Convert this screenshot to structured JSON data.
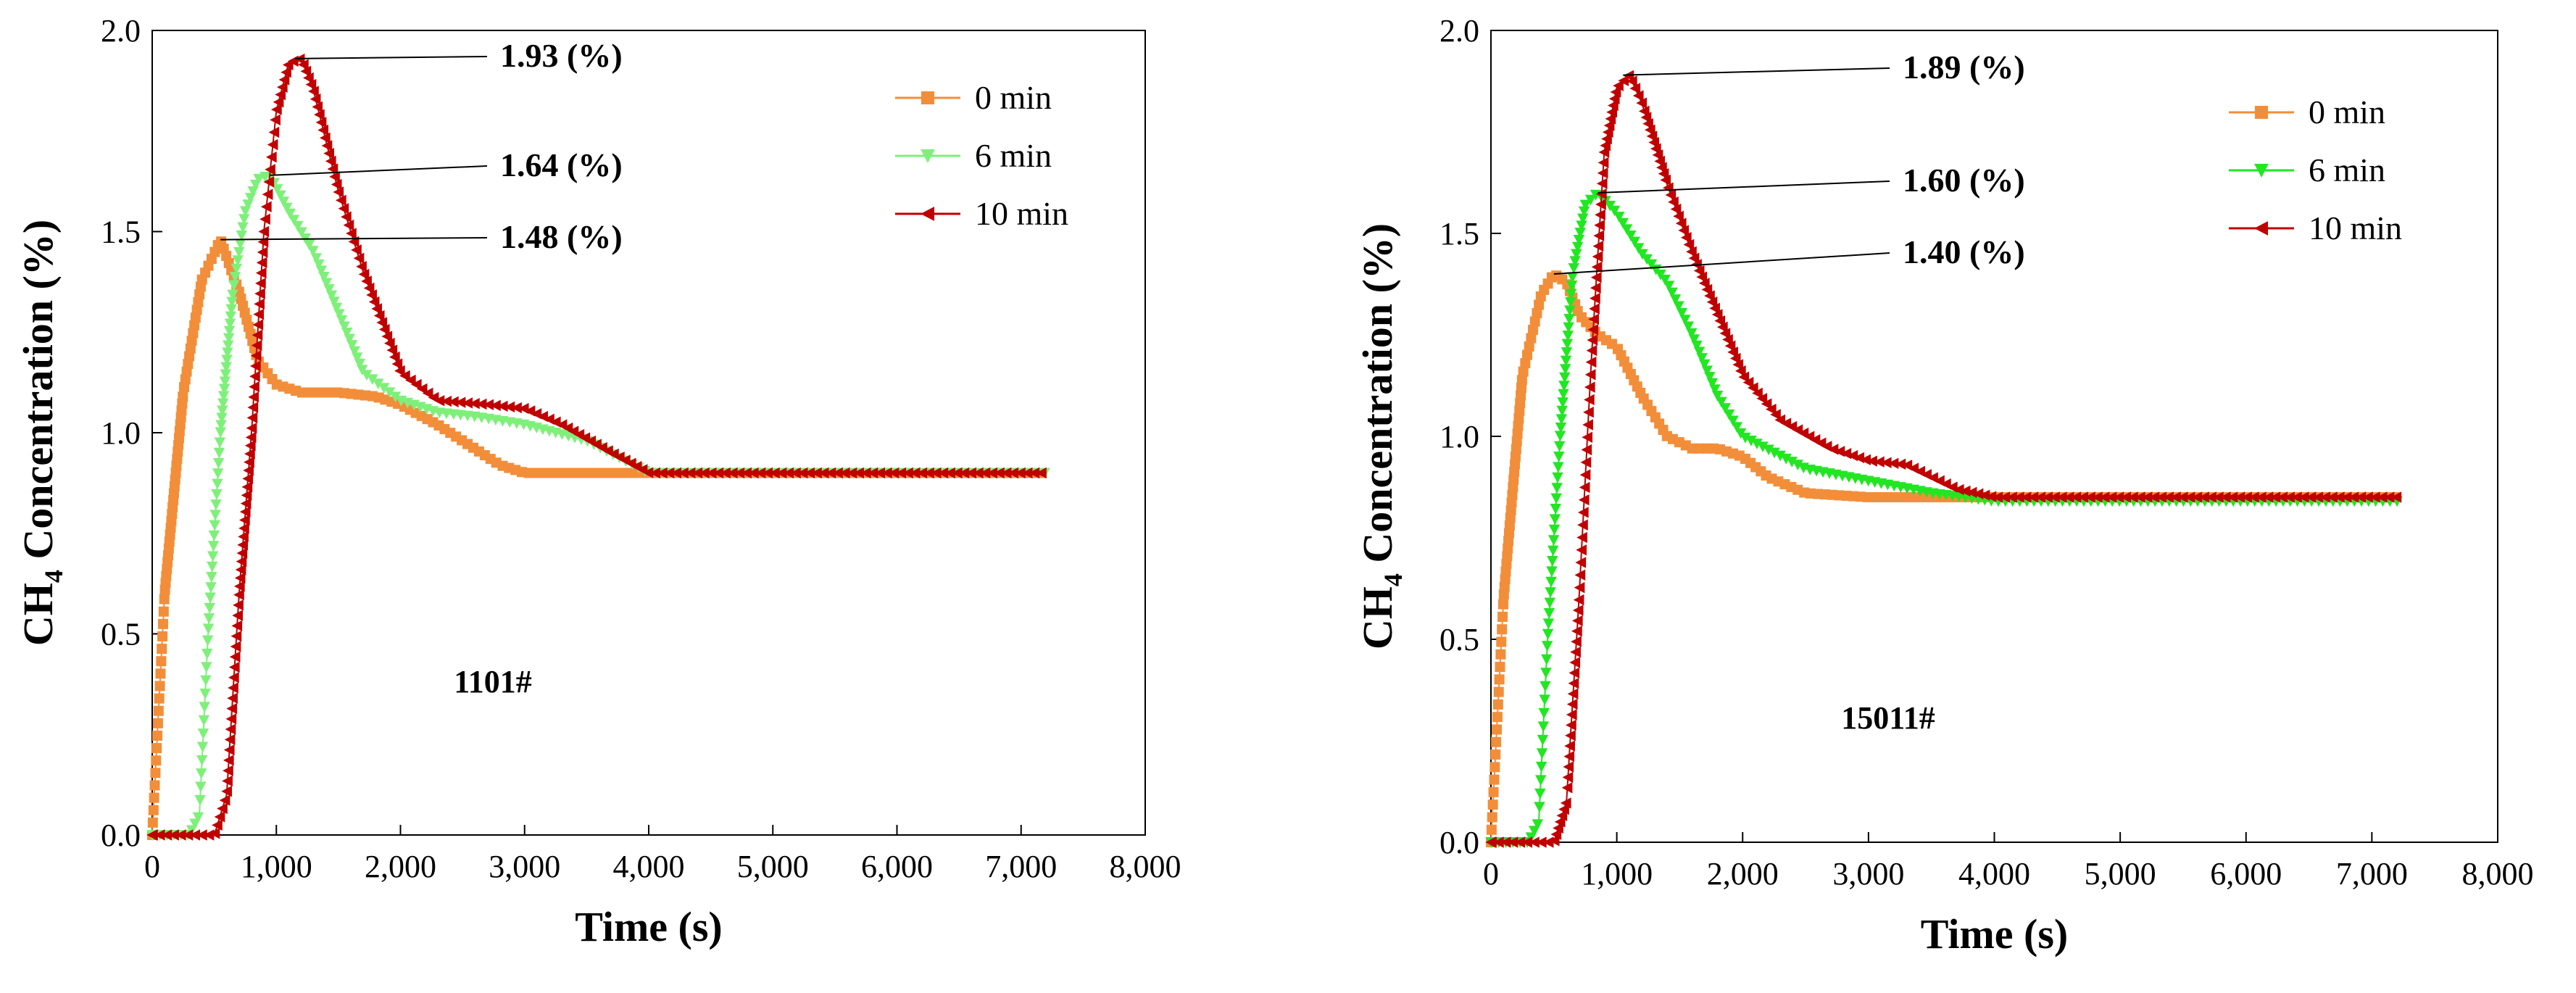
{
  "chart_data": [
    {
      "type": "scatter",
      "panel_label": "1101#",
      "xlabel": "Time (s)",
      "ylabel": "CH4 Concentration (%)",
      "ylabel_main": "CH",
      "ylabel_sub": "4",
      "ylabel_rest": " Concentration (%)",
      "xlim": [
        0,
        8000
      ],
      "ylim": [
        0,
        2.0
      ],
      "xticks": [
        0,
        1000,
        2000,
        3000,
        4000,
        5000,
        6000,
        7000,
        8000
      ],
      "xtick_labels": [
        "0",
        "1,000",
        "2,000",
        "3,000",
        "4,000",
        "5,000",
        "6,000",
        "7,000",
        "8,000"
      ],
      "yticks": [
        0,
        0.5,
        1.0,
        1.5,
        2.0
      ],
      "ytick_labels": [
        "0.0",
        "0.5",
        "1.0",
        "1.5",
        "2.0"
      ],
      "grid": false,
      "legend_position": "top-right",
      "series": [
        {
          "name": "0 min",
          "color": "#f28e3a",
          "marker": "square",
          "x": [
            0,
            100,
            250,
            400,
            550,
            700,
            850,
            1000,
            1200,
            1500,
            1800,
            2000,
            2300,
            2600,
            2800,
            3000,
            3500,
            4000,
            5000,
            6000,
            7200
          ],
          "y": [
            0.0,
            0.6,
            1.1,
            1.38,
            1.48,
            1.35,
            1.18,
            1.12,
            1.1,
            1.1,
            1.09,
            1.07,
            1.02,
            0.96,
            0.92,
            0.9,
            0.9,
            0.9,
            0.9,
            0.9,
            0.9
          ]
        },
        {
          "name": "6 min",
          "color": "#7ef07a",
          "marker": "triangle-down",
          "x": [
            0,
            300,
            380,
            450,
            550,
            650,
            750,
            850,
            950,
            1100,
            1300,
            1500,
            1700,
            2000,
            2300,
            2600,
            3000,
            3500,
            4000,
            4500,
            5000,
            6000,
            7200
          ],
          "y": [
            0.0,
            0.0,
            0.05,
            0.5,
            1.0,
            1.35,
            1.55,
            1.63,
            1.64,
            1.55,
            1.45,
            1.3,
            1.15,
            1.08,
            1.05,
            1.04,
            1.02,
            0.98,
            0.9,
            0.9,
            0.9,
            0.9,
            0.9
          ]
        },
        {
          "name": "10 min",
          "color": "#c00000",
          "marker": "triangle-left",
          "x": [
            0,
            500,
            600,
            700,
            800,
            900,
            1000,
            1100,
            1200,
            1300,
            1500,
            1700,
            2000,
            2300,
            2700,
            3000,
            3300,
            3700,
            4000,
            4500,
            5000,
            6000,
            7200
          ],
          "y": [
            0.0,
            0.0,
            0.1,
            0.6,
            1.0,
            1.5,
            1.8,
            1.92,
            1.93,
            1.85,
            1.6,
            1.4,
            1.15,
            1.08,
            1.07,
            1.06,
            1.02,
            0.95,
            0.9,
            0.9,
            0.9,
            0.9,
            0.9
          ]
        }
      ],
      "annotations": [
        {
          "text": "1.93 (%)",
          "series": "10 min",
          "x": 1150,
          "y": 1.93
        },
        {
          "text": "1.64 (%)",
          "series": "6 min",
          "x": 950,
          "y": 1.64
        },
        {
          "text": "1.48 (%)",
          "series": "0 min",
          "x": 550,
          "y": 1.48
        }
      ]
    },
    {
      "type": "scatter",
      "panel_label": "15011#",
      "xlabel": "Time (s)",
      "ylabel": "CH4 Concentration (%)",
      "ylabel_main": "CH",
      "ylabel_sub": "4",
      "ylabel_rest": " Concentration (%)",
      "xlim": [
        0,
        8000
      ],
      "ylim": [
        0,
        2.0
      ],
      "xticks": [
        0,
        1000,
        2000,
        3000,
        4000,
        5000,
        6000,
        7000,
        8000
      ],
      "xtick_labels": [
        "0",
        "1,000",
        "2,000",
        "3,000",
        "4,000",
        "5,000",
        "6,000",
        "7,000",
        "8,000"
      ],
      "yticks": [
        0,
        0.5,
        1.0,
        1.5,
        2.0
      ],
      "ytick_labels": [
        "0.0",
        "0.5",
        "1.0",
        "1.5",
        "2.0"
      ],
      "grid": false,
      "legend_position": "top-right",
      "series": [
        {
          "name": "0 min",
          "color": "#f28e3a",
          "marker": "square",
          "x": [
            0,
            100,
            250,
            400,
            500,
            600,
            700,
            850,
            1000,
            1200,
            1400,
            1600,
            1800,
            2000,
            2200,
            2500,
            3000,
            4000,
            5000,
            6000,
            7200
          ],
          "y": [
            0.0,
            0.6,
            1.15,
            1.35,
            1.4,
            1.38,
            1.3,
            1.25,
            1.22,
            1.1,
            1.0,
            0.97,
            0.97,
            0.95,
            0.9,
            0.86,
            0.85,
            0.85,
            0.85,
            0.85,
            0.85
          ]
        },
        {
          "name": "6 min",
          "color": "#22e622",
          "marker": "triangle-down",
          "x": [
            0,
            300,
            380,
            450,
            550,
            650,
            750,
            850,
            1000,
            1200,
            1400,
            1600,
            1800,
            2000,
            2500,
            3000,
            3500,
            4000,
            5000,
            6000,
            7200
          ],
          "y": [
            0.0,
            0.0,
            0.05,
            0.5,
            1.0,
            1.4,
            1.57,
            1.6,
            1.55,
            1.45,
            1.38,
            1.25,
            1.1,
            1.0,
            0.92,
            0.89,
            0.86,
            0.84,
            0.84,
            0.84,
            0.84
          ]
        },
        {
          "name": "10 min",
          "color": "#c00000",
          "marker": "triangle-left",
          "x": [
            0,
            500,
            600,
            700,
            800,
            900,
            1000,
            1100,
            1200,
            1400,
            1600,
            1800,
            2000,
            2300,
            2700,
            3000,
            3300,
            3700,
            4000,
            5000,
            6000,
            7200
          ],
          "y": [
            0.0,
            0.0,
            0.1,
            0.6,
            1.2,
            1.7,
            1.86,
            1.89,
            1.82,
            1.62,
            1.45,
            1.3,
            1.15,
            1.04,
            0.97,
            0.94,
            0.93,
            0.87,
            0.85,
            0.85,
            0.85,
            0.85
          ]
        }
      ],
      "annotations": [
        {
          "text": "1.89 (%)",
          "series": "10 min",
          "x": 1050,
          "y": 1.89
        },
        {
          "text": "1.60 (%)",
          "series": "6 min",
          "x": 850,
          "y": 1.6
        },
        {
          "text": "1.40 (%)",
          "series": "0 min",
          "x": 500,
          "y": 1.4
        }
      ]
    }
  ]
}
